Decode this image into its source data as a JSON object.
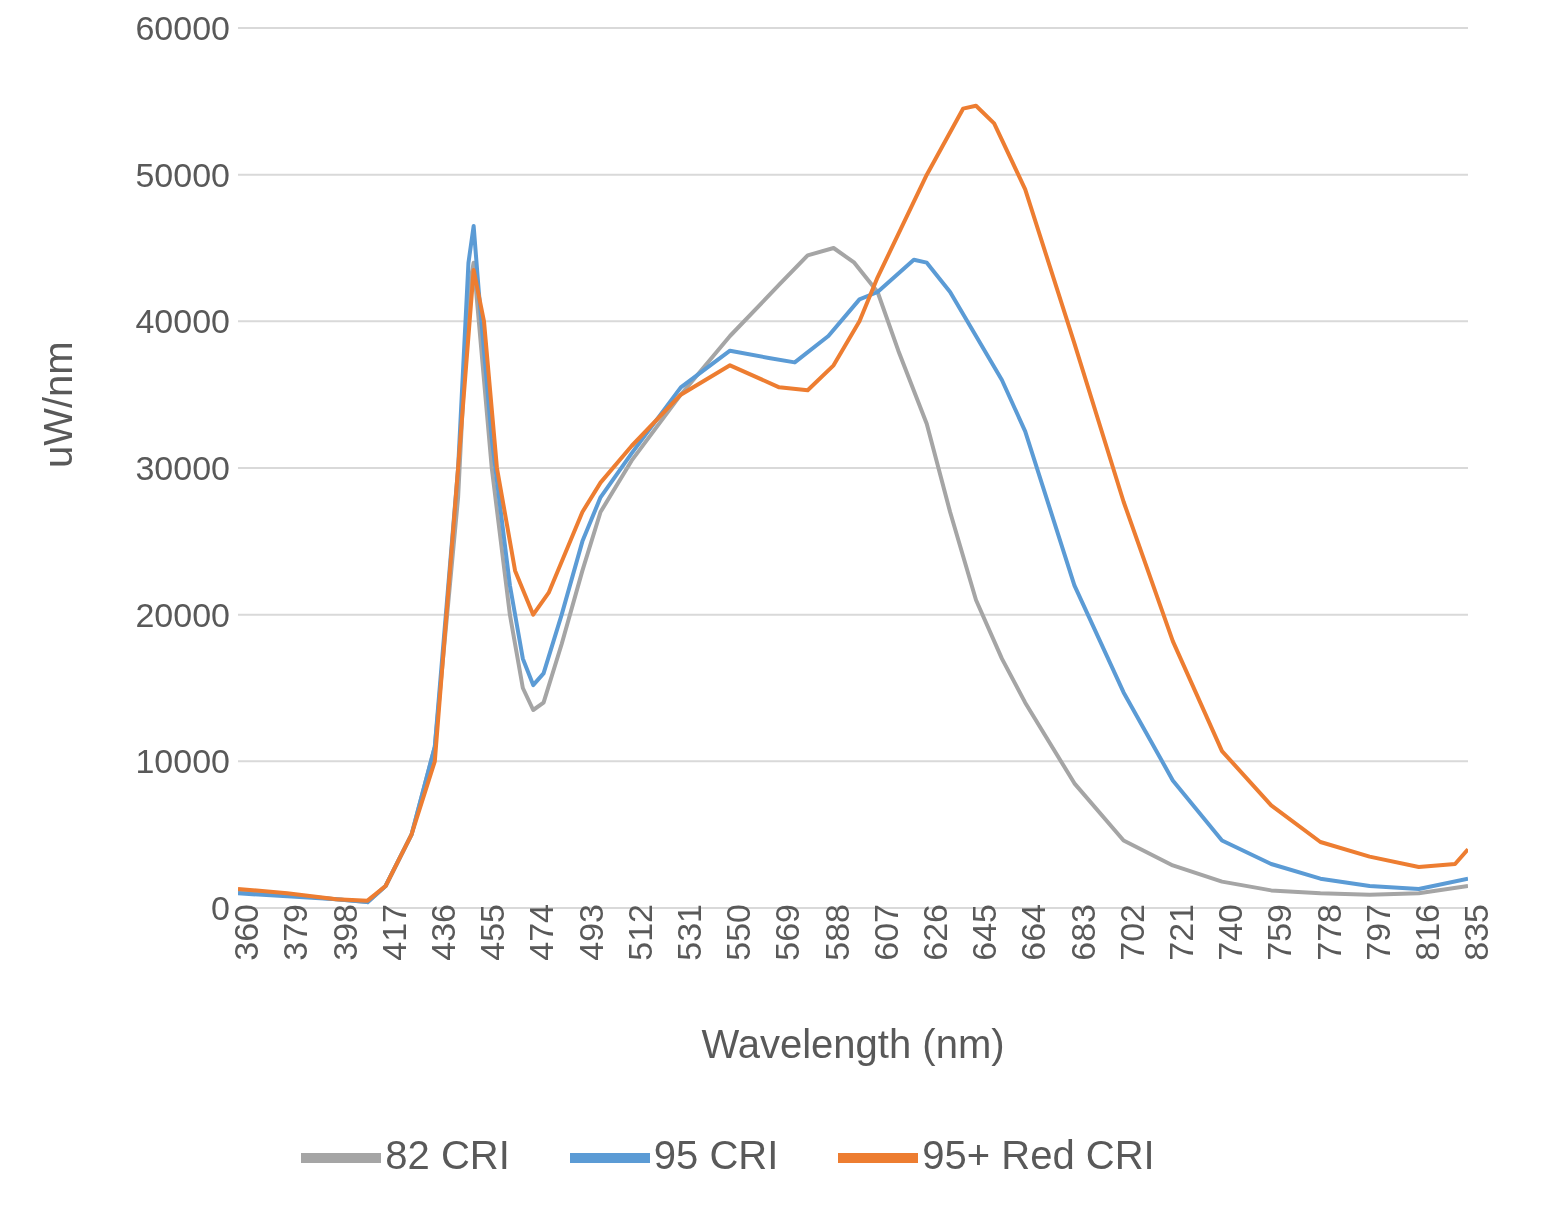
{
  "chart_data": {
    "type": "line",
    "xlabel": "Wavelength (nm)",
    "ylabel": "uW/nm",
    "xlim": [
      360,
      835
    ],
    "xticks": [
      360,
      379,
      398,
      417,
      436,
      455,
      474,
      493,
      512,
      531,
      550,
      569,
      588,
      607,
      626,
      645,
      664,
      683,
      702,
      721,
      740,
      759,
      778,
      797,
      816,
      835
    ],
    "ylim": [
      0,
      60000
    ],
    "yticks": [
      0,
      10000,
      20000,
      30000,
      40000,
      50000,
      60000
    ],
    "grid": "y",
    "legend": "bottom",
    "marker": "none",
    "line_style": "solid",
    "series": [
      {
        "name": "82 CRI",
        "color": "#a5a5a5",
        "x": [
          360,
          379,
          398,
          410,
          417,
          427,
          436,
          445,
          449,
          451,
          453,
          458,
          465,
          470,
          474,
          478,
          485,
          493,
          500,
          512,
          531,
          550,
          569,
          580,
          590,
          598,
          607,
          615,
          626,
          635,
          645,
          655,
          664,
          683,
          702,
          721,
          740,
          759,
          778,
          797,
          816,
          835
        ],
        "values": [
          1200,
          900,
          600,
          400,
          1500,
          5000,
          11000,
          28000,
          42000,
          44000,
          40000,
          30000,
          20000,
          15000,
          13500,
          14000,
          18000,
          23000,
          27000,
          30500,
          35000,
          39000,
          42500,
          44500,
          45000,
          44000,
          42000,
          38000,
          33000,
          27000,
          21000,
          17000,
          14000,
          8500,
          4600,
          2900,
          1800,
          1200,
          1000,
          900,
          1000,
          1500
        ]
      },
      {
        "name": "95 CRI",
        "color": "#5b9bd5",
        "x": [
          360,
          379,
          398,
          410,
          417,
          427,
          436,
          445,
          449,
          451,
          453,
          458,
          465,
          470,
          474,
          478,
          485,
          493,
          500,
          512,
          531,
          550,
          565,
          575,
          588,
          600,
          607,
          621,
          626,
          635,
          645,
          655,
          664,
          683,
          702,
          721,
          740,
          759,
          778,
          797,
          816,
          835
        ],
        "values": [
          1000,
          800,
          600,
          400,
          1500,
          5000,
          11000,
          30000,
          44000,
          46500,
          42000,
          32000,
          22000,
          17000,
          15200,
          16000,
          20000,
          25000,
          28000,
          31000,
          35500,
          38000,
          37500,
          37200,
          39000,
          41500,
          42000,
          44200,
          44000,
          42000,
          39000,
          36000,
          32500,
          22000,
          14700,
          8700,
          4600,
          3000,
          2000,
          1500,
          1300,
          2000
        ]
      },
      {
        "name": "95+ Red CRI",
        "color": "#ed7d31",
        "x": [
          360,
          379,
          398,
          410,
          417,
          427,
          436,
          445,
          451,
          455,
          460,
          467,
          474,
          480,
          493,
          500,
          512,
          531,
          550,
          569,
          580,
          590,
          600,
          607,
          626,
          640,
          645,
          652,
          664,
          683,
          702,
          721,
          740,
          759,
          778,
          797,
          816,
          830,
          835
        ],
        "values": [
          1300,
          1000,
          600,
          500,
          1500,
          5000,
          10000,
          30000,
          43500,
          40000,
          30000,
          23000,
          20000,
          21500,
          27000,
          29000,
          31500,
          35000,
          37000,
          35500,
          35300,
          37000,
          40000,
          43000,
          50000,
          54500,
          54700,
          53500,
          49000,
          38500,
          27700,
          18200,
          10700,
          7000,
          4500,
          3500,
          2800,
          3000,
          4000
        ]
      }
    ]
  }
}
